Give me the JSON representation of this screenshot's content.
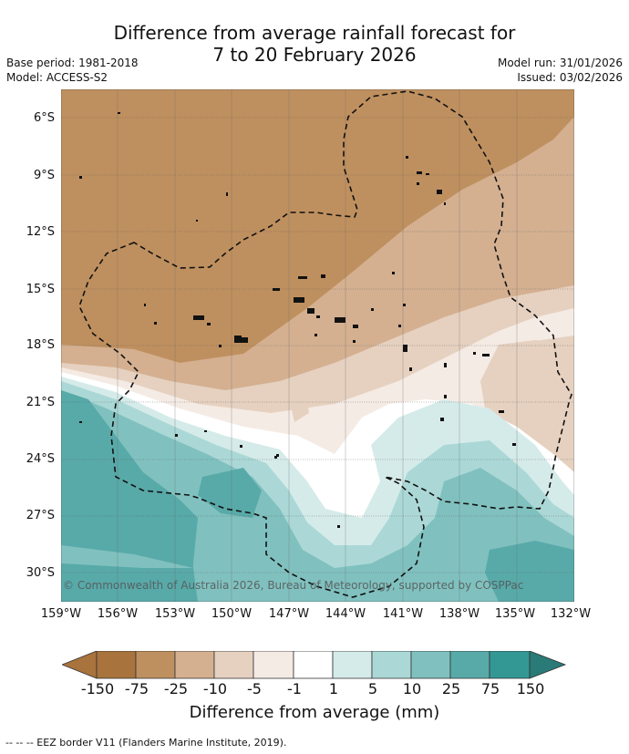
{
  "title": {
    "line1": "Difference from average rainfall forecast for",
    "line2": "7 to 20 February 2026"
  },
  "meta": {
    "base_period": "Base period: 1981-2018",
    "model": "Model: ACCESS-S2",
    "model_run": "Model run: 31/01/2026",
    "issued": "Issued: 03/02/2026"
  },
  "map": {
    "latitude_labels": [
      "6°S",
      "9°S",
      "12°S",
      "15°S",
      "18°S",
      "21°S",
      "24°S",
      "27°S",
      "30°S"
    ],
    "longitude_labels": [
      "159°W",
      "156°W",
      "153°W",
      "150°W",
      "147°W",
      "144°W",
      "141°W",
      "138°W",
      "135°W",
      "132°W"
    ],
    "extent": {
      "lon_min": -159,
      "lon_max": -132,
      "lat_north": -4.5,
      "lat_south": -31.5
    },
    "copyright": "© Commonwealth of Australia 2026, Bureau of Meteorology, supported by COSPPac"
  },
  "colorbar": {
    "labels": [
      "-150",
      "-75",
      "-25",
      "-10",
      "-5",
      "-1",
      "1",
      "5",
      "10",
      "25",
      "75",
      "150"
    ],
    "colors": [
      "#a8733c",
      "#bf905f",
      "#d4b091",
      "#e6d1c0",
      "#f5ebe5",
      "#ffffff",
      "#d5ebea",
      "#abd8d6",
      "#80c1bf",
      "#58aaa9",
      "#339894",
      "#2a7a77"
    ],
    "title": "Difference from average (mm)"
  },
  "footer": {
    "legend": "--  --  -- EEZ border V11 (Flanders Marine Institute, 2019)."
  }
}
